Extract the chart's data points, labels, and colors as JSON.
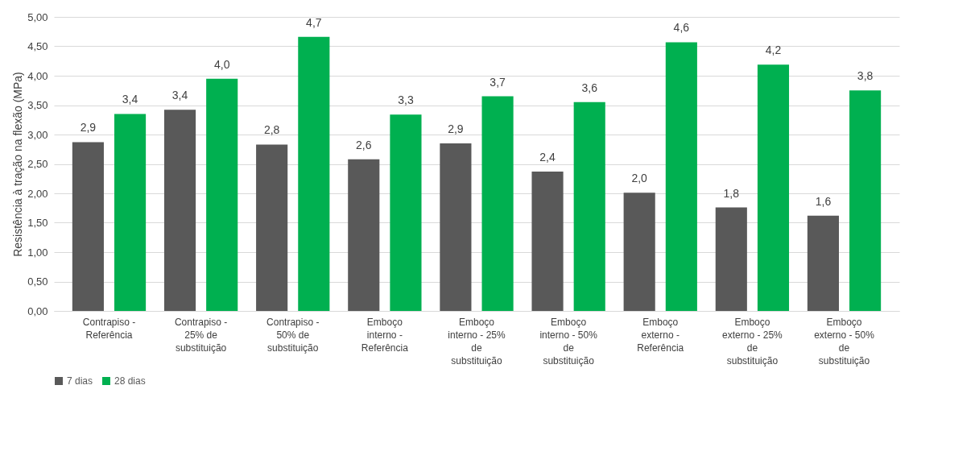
{
  "chart_data": {
    "type": "bar",
    "ylabel": "Resistência à tração na flexão (MPa)",
    "categories": [
      "Contrapiso - Referência",
      "Contrapiso - 25% de substituição",
      "Contrapiso - 50% de substituição",
      "Emboço interno - Referência",
      "Emboço interno - 25% de substituição",
      "Emboço interno - 50% de substituição",
      "Emboço externo - Referência",
      "Emboço externo - 25% de substituição",
      "Emboço externo - 50% de substituição"
    ],
    "series": [
      {
        "name": "7 dias",
        "color": "#595959",
        "values": [
          2.87,
          3.42,
          2.83,
          2.58,
          2.85,
          2.37,
          2.01,
          1.76,
          1.62
        ],
        "value_labels": [
          "2,9",
          "3,4",
          "2,8",
          "2,6",
          "2,9",
          "2,4",
          "2,0",
          "1,8",
          "1,6"
        ]
      },
      {
        "name": "28 dias",
        "color": "#00b050",
        "values": [
          3.35,
          3.95,
          4.66,
          3.34,
          3.65,
          3.55,
          4.57,
          4.19,
          3.75
        ],
        "value_labels": [
          "3,4",
          "4,0",
          "4,7",
          "3,3",
          "3,7",
          "3,6",
          "4,6",
          "4,2",
          "3,8"
        ]
      }
    ],
    "ylim": [
      0,
      5
    ],
    "yticks": [
      {
        "value": 0,
        "label": "0,00"
      },
      {
        "value": 0.5,
        "label": "0,50"
      },
      {
        "value": 1,
        "label": "1,00"
      },
      {
        "value": 1.5,
        "label": "1,50"
      },
      {
        "value": 2,
        "label": "2,00"
      },
      {
        "value": 2.5,
        "label": "2,50"
      },
      {
        "value": 3,
        "label": "3,00"
      },
      {
        "value": 3.5,
        "label": "3,50"
      },
      {
        "value": 4,
        "label": "4,00"
      },
      {
        "value": 4.5,
        "label": "4,50"
      },
      {
        "value": 5,
        "label": "5,00"
      }
    ],
    "grid": "y",
    "legend": "bottom"
  }
}
